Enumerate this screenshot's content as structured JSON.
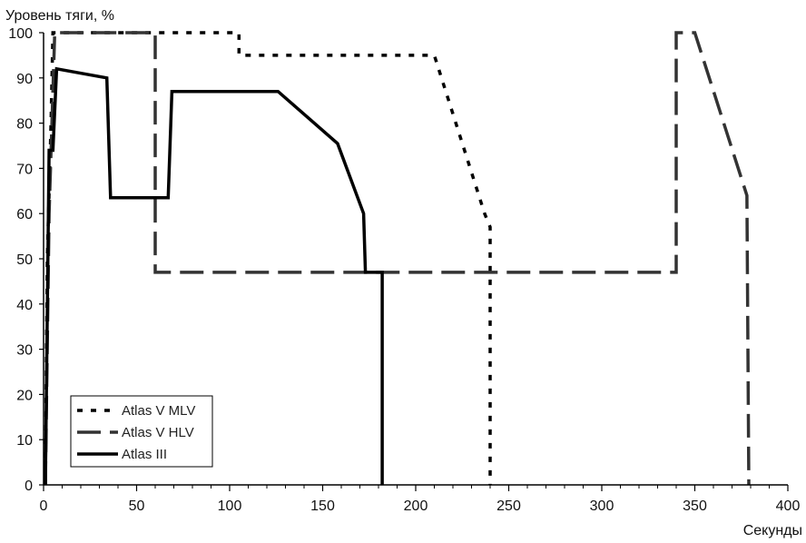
{
  "chart_data": {
    "type": "line",
    "title": "",
    "ylabel": "Уровень тяги, %",
    "xlabel": "Секунды",
    "xlim": [
      0,
      400
    ],
    "ylim": [
      0,
      100
    ],
    "x_ticks": [
      0,
      50,
      100,
      150,
      200,
      250,
      300,
      350,
      400
    ],
    "y_ticks": [
      0,
      10,
      20,
      30,
      40,
      50,
      60,
      70,
      80,
      90,
      100
    ],
    "grid": false,
    "legend_position": "bottom-left",
    "series": [
      {
        "name": "Atlas V MLV",
        "style": "dotted",
        "color": "#000000",
        "points": [
          [
            1,
            0
          ],
          [
            2,
            50
          ],
          [
            4,
            80
          ],
          [
            5,
            100
          ],
          [
            105,
            100
          ],
          [
            105,
            95
          ],
          [
            210,
            95
          ],
          [
            237,
            60
          ],
          [
            240,
            57
          ],
          [
            240,
            0
          ]
        ]
      },
      {
        "name": "Atlas V HLV",
        "style": "dashed",
        "color": "#333333",
        "points": [
          [
            1,
            0
          ],
          [
            3,
            60
          ],
          [
            6,
            100
          ],
          [
            60,
            100
          ],
          [
            60,
            47
          ],
          [
            340,
            47
          ],
          [
            340,
            100
          ],
          [
            350,
            100
          ],
          [
            378,
            64
          ],
          [
            379,
            0
          ]
        ]
      },
      {
        "name": "Atlas III",
        "style": "solid",
        "color": "#000000",
        "points": [
          [
            1,
            0
          ],
          [
            3,
            74
          ],
          [
            5,
            74
          ],
          [
            7,
            92
          ],
          [
            34,
            90
          ],
          [
            36,
            63.5
          ],
          [
            67,
            63.5
          ],
          [
            69,
            87
          ],
          [
            126,
            87
          ],
          [
            158,
            75.5
          ],
          [
            172,
            60
          ],
          [
            173,
            47
          ],
          [
            182,
            47
          ],
          [
            182,
            0
          ]
        ]
      }
    ]
  }
}
